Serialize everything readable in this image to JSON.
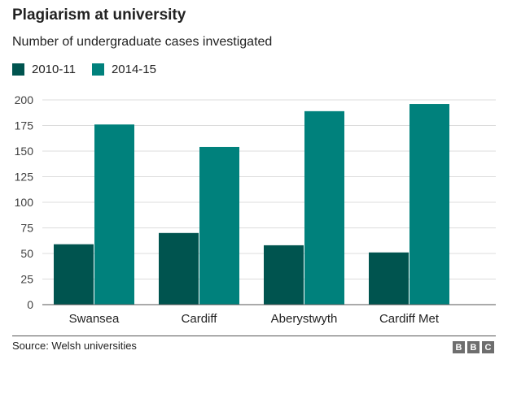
{
  "title": "Plagiarism at university",
  "subtitle": "Number of undergraduate cases investigated",
  "source": "Source: Welsh universities",
  "logo_letters": [
    "B",
    "B",
    "C"
  ],
  "colors": {
    "series1": "#00544f",
    "series2": "#00817c",
    "grid": "#dcdcdc",
    "axis": "#555555"
  },
  "chart_data": {
    "type": "bar",
    "title": "Plagiarism at university",
    "subtitle": "Number of undergraduate cases investigated",
    "categories": [
      "Swansea",
      "Cardiff",
      "Aberystwyth",
      "Cardiff Met"
    ],
    "series": [
      {
        "name": "2010-11",
        "values": [
          59,
          70,
          58,
          51
        ]
      },
      {
        "name": "2014-15",
        "values": [
          176,
          154,
          189,
          196
        ]
      }
    ],
    "ylim": [
      0,
      200
    ],
    "yticks": [
      0,
      25,
      50,
      75,
      100,
      125,
      150,
      175,
      200
    ],
    "xlabel": "",
    "ylabel": "",
    "grid": true,
    "legend": "top-left"
  }
}
